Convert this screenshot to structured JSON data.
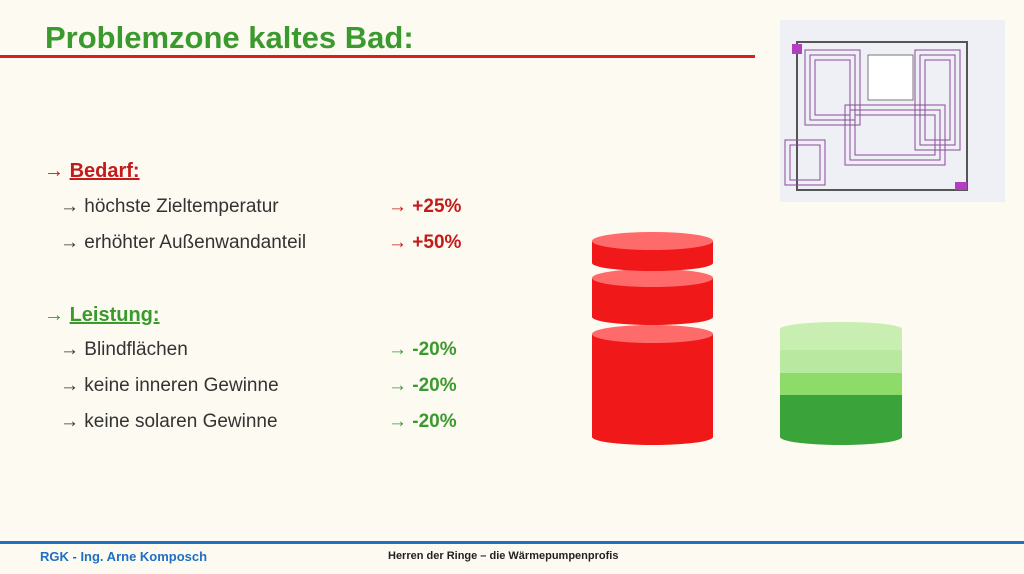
{
  "header": {
    "title": "Problemzone kaltes Bad:"
  },
  "sections": [
    {
      "arrow": "→",
      "label": "Bedarf:",
      "items": [
        {
          "text": "→ höchste Zieltemperatur",
          "value": "→ +25%"
        },
        {
          "text": "→ erhöhter Außenwandanteil",
          "value": "→ +50%"
        }
      ]
    },
    {
      "arrow": "→",
      "label": "Leistung:",
      "items": [
        {
          "text": "→ Blindflächen",
          "value": "→ -20%"
        },
        {
          "text": "→ keine inneren Gewinne",
          "value": "→ -20%"
        },
        {
          "text": "→ keine solaren Gewinne",
          "value": "→ -20%"
        }
      ]
    }
  ],
  "footer": {
    "left": "RGK - Ing. Arne Komposch",
    "center": "Herren der Ringe – die Wärmepumpenprofis"
  }
}
